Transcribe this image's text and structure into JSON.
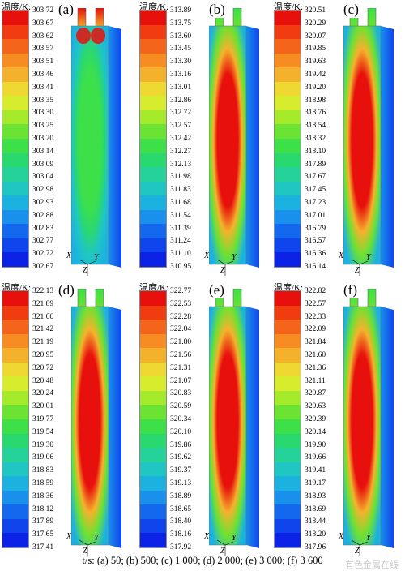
{
  "colorbar_title": "温度/K:",
  "colorbar_colors": [
    "#e8100c",
    "#f03c10",
    "#f4641a",
    "#f78c22",
    "#f4b22c",
    "#f0d832",
    "#d8ec2e",
    "#a6ea2c",
    "#6ce232",
    "#3ee04a",
    "#2ad870",
    "#24d29a",
    "#20c6c2",
    "#1cb2e0",
    "#1890ec",
    "#1468ee",
    "#1044ec",
    "#0c22e6"
  ],
  "panels": [
    {
      "tag": "(a)",
      "ticks": [
        "303.72",
        "303.67",
        "303.62",
        "303.57",
        "303.51",
        "303.46",
        "303.41",
        "303.35",
        "303.30",
        "303.25",
        "303.20",
        "303.14",
        "303.09",
        "303.04",
        "302.98",
        "302.93",
        "302.88",
        "302.83",
        "302.77",
        "302.72",
        "302.67"
      ]
    },
    {
      "tag": "(b)",
      "ticks": [
        "313.89",
        "313.75",
        "313.60",
        "313.45",
        "313.30",
        "313.16",
        "313.01",
        "312.86",
        "312.72",
        "312.57",
        "312.42",
        "312.27",
        "312.13",
        "311.98",
        "311.83",
        "311.68",
        "311.54",
        "311.39",
        "311.24",
        "311.10",
        "310.95"
      ]
    },
    {
      "tag": "(c)",
      "ticks": [
        "320.51",
        "320.29",
        "320.07",
        "319.85",
        "319.63",
        "319.42",
        "319.20",
        "318.98",
        "318.76",
        "318.54",
        "318.32",
        "318.10",
        "317.89",
        "317.67",
        "317.45",
        "317.23",
        "317.01",
        "316.79",
        "316.57",
        "316.36",
        "316.14"
      ]
    },
    {
      "tag": "(d)",
      "ticks": [
        "322.13",
        "321.89",
        "321.66",
        "321.42",
        "321.19",
        "320.95",
        "320.72",
        "320.48",
        "320.24",
        "320.01",
        "319.77",
        "319.54",
        "319.30",
        "319.06",
        "318.83",
        "318.59",
        "318.36",
        "318.12",
        "317.89",
        "317.65",
        "317.41"
      ]
    },
    {
      "tag": "(e)",
      "ticks": [
        "322.77",
        "322.53",
        "322.28",
        "322.04",
        "321.80",
        "321.56",
        "321.31",
        "321.07",
        "320.83",
        "320.59",
        "320.34",
        "320.10",
        "319.86",
        "319.62",
        "319.37",
        "319.13",
        "318.89",
        "318.65",
        "318.40",
        "318.16",
        "317.92"
      ]
    },
    {
      "tag": "(f)",
      "ticks": [
        "322.82",
        "322.57",
        "322.33",
        "322.09",
        "321.84",
        "321.60",
        "321.36",
        "321.11",
        "320.87",
        "320.63",
        "320.39",
        "320.14",
        "319.90",
        "319.66",
        "319.41",
        "319.17",
        "318.93",
        "318.69",
        "318.44",
        "318.20",
        "317.96"
      ]
    }
  ],
  "axis_labels": {
    "x": "X",
    "y": "Y",
    "z": "Z"
  },
  "caption": "t/s: (a) 50; (b) 500; (c) 1 000; (d) 2 000; (e) 3 000; (f) 3 600",
  "watermark": "有色金属在线"
}
